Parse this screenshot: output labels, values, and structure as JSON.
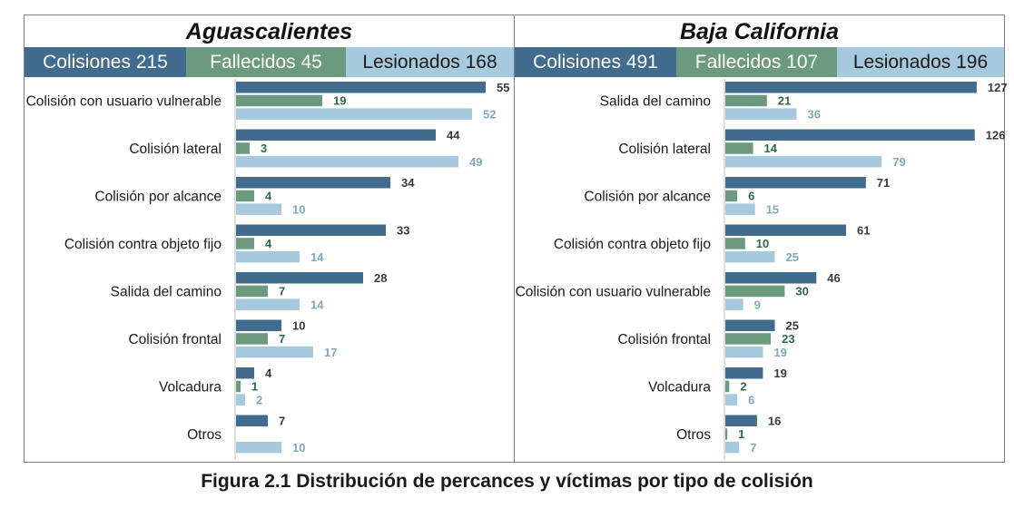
{
  "caption": "Figura 2.1 Distribución de percances y víctimas por tipo de colisión",
  "colors": {
    "colisiones": "#416c8e",
    "fallecidos": "#6c9a7e",
    "lesionados": "#a7c9dd",
    "colisiones_text": "#3a3a3a",
    "fallecidos_text": "#2e6a4a",
    "lesionados_text": "#7fa8bf"
  },
  "chart_data": [
    {
      "type": "bar",
      "orientation": "horizontal",
      "title": "Aguascalientes",
      "stats": [
        {
          "label": "Colisiones 215"
        },
        {
          "label": "Fallecidos 45"
        },
        {
          "label": "Lesionados 168"
        }
      ],
      "categories": [
        "Colisión con usuario vulnerable",
        "Colisión lateral",
        "Colisión por alcance",
        "Colisión contra objeto fijo",
        "Salida del camino",
        "Colisión frontal",
        "Volcadura",
        "Otros"
      ],
      "series": [
        {
          "key": "colisiones",
          "values": [
            55,
            44,
            34,
            33,
            28,
            10,
            4,
            7
          ]
        },
        {
          "key": "fallecidos",
          "values": [
            19,
            3,
            4,
            4,
            7,
            7,
            1,
            null
          ]
        },
        {
          "key": "lesionados",
          "values": [
            52,
            49,
            10,
            14,
            14,
            17,
            2,
            10
          ]
        }
      ],
      "xlim": [
        0,
        58
      ],
      "grid": false
    },
    {
      "type": "bar",
      "orientation": "horizontal",
      "title": "Baja California",
      "stats": [
        {
          "label": "Colisiones 491"
        },
        {
          "label": "Fallecidos 107"
        },
        {
          "label": "Lesionados 196"
        }
      ],
      "categories": [
        "Salida del camino",
        "Colisión lateral",
        "Colisión por alcance",
        "Colisión contra objeto fijo",
        "Colisión con usuario vulnerable",
        "Colisión frontal",
        "Volcadura",
        "Otros"
      ],
      "series": [
        {
          "key": "colisiones",
          "values": [
            127,
            126,
            71,
            61,
            46,
            25,
            19,
            16
          ]
        },
        {
          "key": "fallecidos",
          "values": [
            21,
            14,
            6,
            10,
            30,
            23,
            2,
            1
          ]
        },
        {
          "key": "lesionados",
          "values": [
            36,
            79,
            15,
            25,
            9,
            19,
            6,
            7
          ]
        }
      ],
      "xlim": [
        0,
        133
      ],
      "grid": false
    }
  ]
}
